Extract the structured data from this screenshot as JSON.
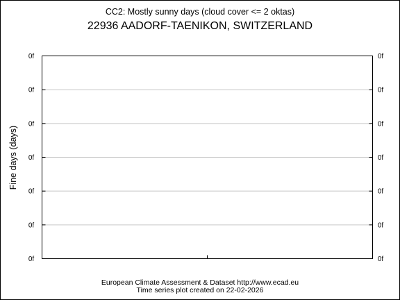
{
  "chart_data": {
    "type": "line",
    "subtitle": "CC2: Mostly sunny days (cloud cover <= 2 oktas)",
    "title": "22936 AADORF-TAENIKON, SWITZERLAND",
    "ylabel": "Fine days (days)",
    "xlabel": "",
    "y_ticks": [
      "0f",
      "0f",
      "0f",
      "0f",
      "0f",
      "0f",
      "0f"
    ],
    "x_ticks": [
      ""
    ],
    "series": [],
    "grid": true,
    "footer_line1": "European Climate Assessment & Dataset  http://www.ecad.eu",
    "footer_line2": "Time series plot created on 22-02-2026"
  }
}
